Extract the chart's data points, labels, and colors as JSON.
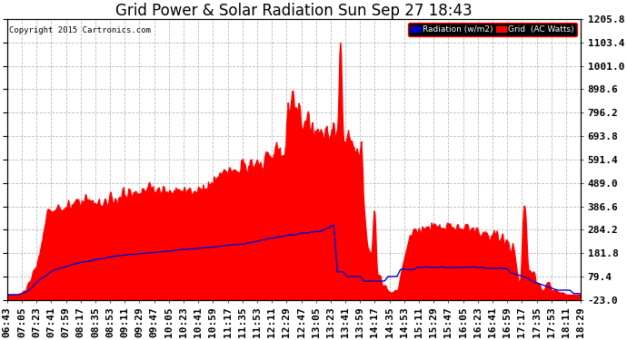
{
  "title": "Grid Power & Solar Radiation Sun Sep 27 18:43",
  "copyright": "Copyright 2015 Cartronics.com",
  "yticks": [
    -23.0,
    79.4,
    181.8,
    284.2,
    386.6,
    489.0,
    591.4,
    693.8,
    796.2,
    898.6,
    1001.0,
    1103.4,
    1205.8
  ],
  "ymin": -23.0,
  "ymax": 1205.8,
  "bg_color": "#ffffff",
  "grid_color": "#bbbbbb",
  "red_color": "#ff0000",
  "blue_color": "#0000cc",
  "legend_radiation_label": "Radiation (w/m2)",
  "legend_grid_label": "Grid  (AC Watts)",
  "title_fontsize": 12,
  "tick_fontsize": 8,
  "xtick_labels": [
    "06:43",
    "07:05",
    "07:23",
    "07:41",
    "07:59",
    "08:17",
    "08:35",
    "08:53",
    "09:11",
    "09:29",
    "09:47",
    "10:05",
    "10:23",
    "10:41",
    "10:59",
    "11:17",
    "11:35",
    "11:53",
    "12:11",
    "12:29",
    "12:47",
    "13:05",
    "13:23",
    "13:41",
    "13:59",
    "14:17",
    "14:35",
    "14:53",
    "15:11",
    "15:29",
    "15:47",
    "16:05",
    "16:23",
    "16:41",
    "16:59",
    "17:17",
    "17:35",
    "17:53",
    "18:11",
    "18:29"
  ]
}
